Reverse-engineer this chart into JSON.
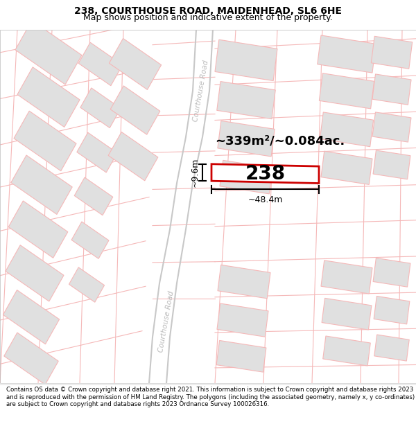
{
  "title_line1": "238, COURTHOUSE ROAD, MAIDENHEAD, SL6 6HE",
  "title_line2": "Map shows position and indicative extent of the property.",
  "footer_text": "Contains OS data © Crown copyright and database right 2021. This information is subject to Crown copyright and database rights 2023 and is reproduced with the permission of HM Land Registry. The polygons (including the associated geometry, namely x, y co-ordinates) are subject to Crown copyright and database rights 2023 Ordnance Survey 100026316.",
  "area_label": "~339m²/~0.084ac.",
  "width_label": "~48.4m",
  "height_label": "~9.6m",
  "plot_number": "238",
  "bg_color": "#ffffff",
  "road_line_color": "#f5b8b8",
  "building_fill": "#e0e0e0",
  "building_edge": "#f5b8b8",
  "plot_fill": "#ffffff",
  "plot_edge": "#cc0000",
  "plot_edge_width": 2.0,
  "road_label_color": "#bbbbbb",
  "dim_color": "#000000",
  "title_fontsize": 10,
  "subtitle_fontsize": 9,
  "footer_fontsize": 6.2,
  "area_fontsize": 13,
  "plot_num_fontsize": 20,
  "dim_fontsize": 9
}
